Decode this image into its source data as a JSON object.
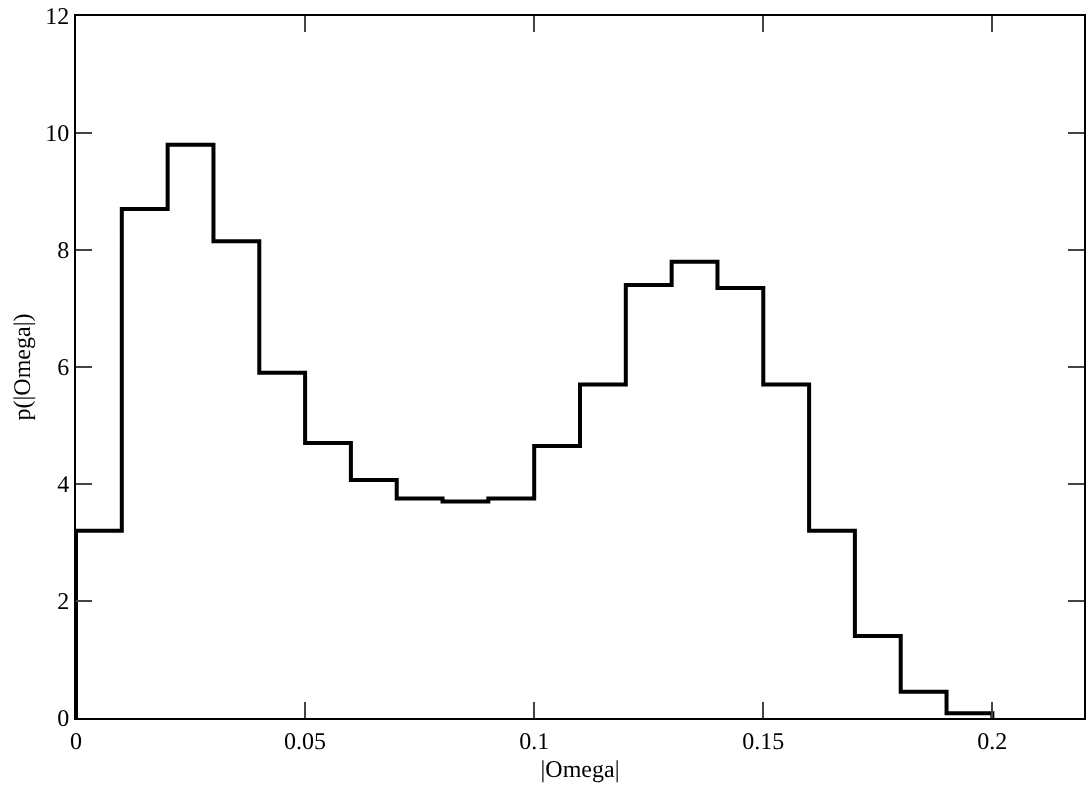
{
  "chart_data": {
    "type": "histogram",
    "xlabel": "|Omega|",
    "ylabel": "p(|Omega|)",
    "bins": [
      0,
      0.01,
      0.02,
      0.03,
      0.04,
      0.05,
      0.06,
      0.07,
      0.08,
      0.09,
      0.1,
      0.11,
      0.12,
      0.13,
      0.14,
      0.15,
      0.16,
      0.17,
      0.18,
      0.19,
      0.2
    ],
    "values": [
      3.2,
      8.7,
      9.8,
      8.15,
      5.9,
      4.7,
      4.07,
      3.75,
      3.7,
      3.75,
      4.65,
      5.7,
      7.4,
      7.8,
      7.35,
      5.7,
      3.2,
      1.4,
      0.45,
      0.08
    ],
    "color": "#000000",
    "xlim": [
      0,
      0.22
    ],
    "xticks": [
      0,
      0.05,
      0.1,
      0.15,
      0.2
    ],
    "ylim": [
      0,
      12
    ],
    "yticks": [
      0,
      2,
      4,
      6,
      8,
      10,
      12
    ],
    "grid": false
  }
}
